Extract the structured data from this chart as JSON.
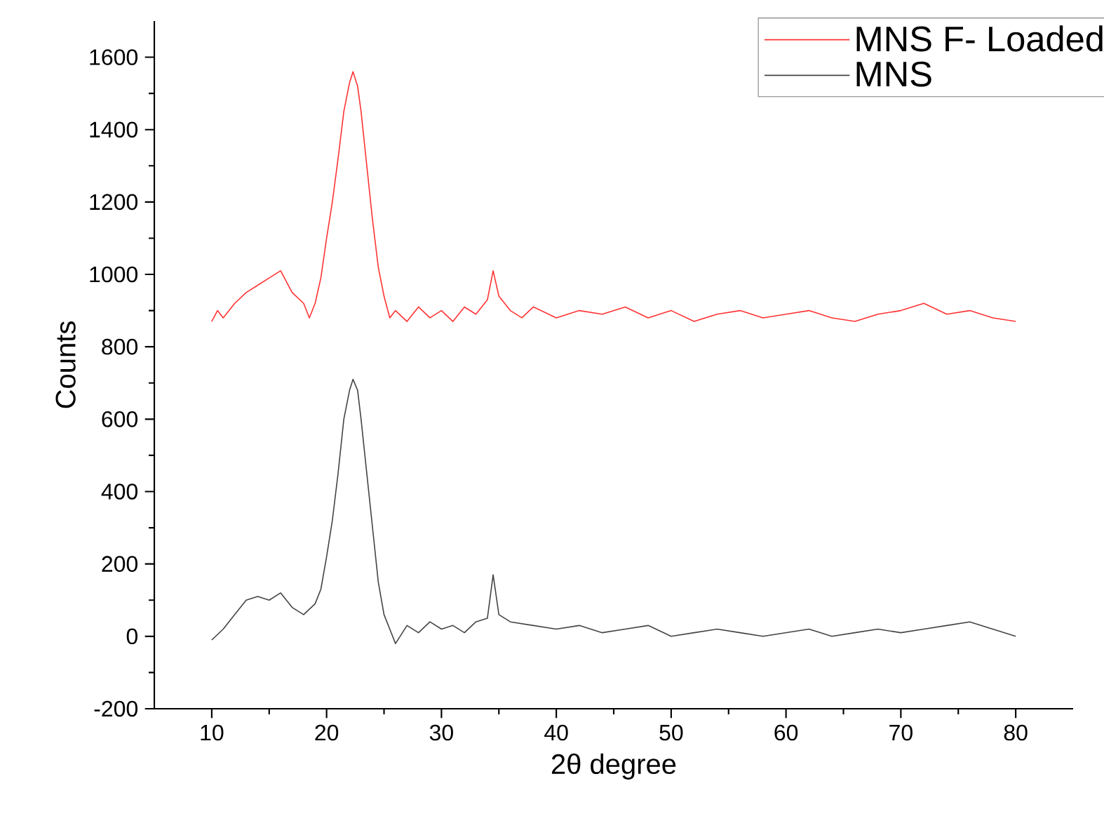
{
  "chart_data": {
    "type": "line",
    "xlabel": "2θ degree",
    "ylabel": "Counts",
    "xlim": [
      5,
      85
    ],
    "ylim": [
      -200,
      1700
    ],
    "xticks": [
      10,
      20,
      30,
      40,
      50,
      60,
      70,
      80
    ],
    "yticks": [
      -200,
      0,
      200,
      400,
      600,
      800,
      1000,
      1200,
      1400,
      1600
    ],
    "legend": "top right",
    "series": [
      {
        "name": "MNS F- Loaded",
        "color": "#ff3333",
        "x": [
          10,
          10.5,
          11,
          12,
          13,
          14,
          15,
          16,
          16.5,
          17,
          18,
          18.5,
          19,
          19.5,
          20,
          20.5,
          21,
          21.5,
          22,
          22.3,
          22.7,
          23,
          23.5,
          24,
          24.5,
          25,
          25.5,
          26,
          27,
          28,
          29,
          30,
          31,
          32,
          33,
          34,
          34.5,
          35,
          36,
          37,
          38,
          40,
          42,
          44,
          46,
          48,
          50,
          52,
          54,
          56,
          58,
          60,
          62,
          64,
          66,
          68,
          70,
          72,
          74,
          76,
          78,
          80
        ],
        "values": [
          870,
          900,
          880,
          920,
          950,
          970,
          990,
          1010,
          980,
          950,
          920,
          880,
          920,
          990,
          1100,
          1200,
          1320,
          1450,
          1530,
          1560,
          1520,
          1450,
          1300,
          1150,
          1020,
          940,
          880,
          900,
          870,
          910,
          880,
          900,
          870,
          910,
          890,
          930,
          1010,
          940,
          900,
          880,
          910,
          880,
          900,
          890,
          910,
          880,
          900,
          870,
          890,
          900,
          880,
          890,
          900,
          880,
          870,
          890,
          900,
          920,
          890,
          900,
          880,
          870
        ]
      },
      {
        "name": "MNS",
        "color": "#444444",
        "x": [
          10,
          11,
          12,
          13,
          14,
          15,
          16,
          17,
          18,
          19,
          19.5,
          20,
          20.5,
          21,
          21.5,
          22,
          22.3,
          22.7,
          23,
          23.5,
          24,
          24.5,
          25,
          25.5,
          26,
          27,
          28,
          29,
          30,
          31,
          32,
          33,
          34,
          34.5,
          35,
          36,
          38,
          40,
          42,
          44,
          46,
          48,
          50,
          52,
          54,
          56,
          58,
          60,
          62,
          64,
          66,
          68,
          70,
          72,
          74,
          76,
          78,
          80
        ],
        "values": [
          -10,
          20,
          60,
          100,
          110,
          100,
          120,
          80,
          60,
          90,
          130,
          220,
          320,
          450,
          600,
          680,
          710,
          680,
          600,
          450,
          300,
          150,
          60,
          20,
          -20,
          30,
          10,
          40,
          20,
          30,
          10,
          40,
          50,
          170,
          60,
          40,
          30,
          20,
          30,
          10,
          20,
          30,
          0,
          10,
          20,
          10,
          0,
          10,
          20,
          0,
          10,
          20,
          10,
          20,
          30,
          40,
          20,
          0
        ]
      }
    ]
  }
}
